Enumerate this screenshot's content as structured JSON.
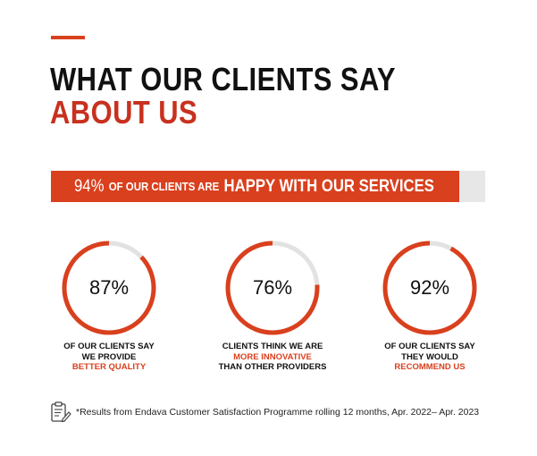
{
  "header": {
    "title_line1": "WHAT OUR CLIENTS SAY",
    "title_line2": "ABOUT US"
  },
  "banner": {
    "percent_label": "94%",
    "mid_text": "OF OUR CLIENTS ARE",
    "highlight_text": "HAPPY WITH OUR SERVICES",
    "fill_fraction": 0.94
  },
  "stats": [
    {
      "value_label": "87%",
      "fraction": 0.87,
      "line1": "OF OUR CLIENTS SAY",
      "line2": "WE PROVIDE",
      "highlight": "BETTER QUALITY",
      "line4": ""
    },
    {
      "value_label": "76%",
      "fraction": 0.76,
      "line1": "CLIENTS THINK WE ARE",
      "line2": "",
      "highlight": "MORE INNOVATIVE",
      "line4": "THAN OTHER PROVIDERS"
    },
    {
      "value_label": "92%",
      "fraction": 0.92,
      "line1": "OF OUR CLIENTS SAY",
      "line2": "THEY WOULD",
      "highlight": "RECOMMEND US",
      "line4": ""
    }
  ],
  "footnote": {
    "icon": "clipboard-pencil-icon",
    "text": "*Results from Endava Customer Satisfaction Programme rolling 12 months, Apr. 2022– Apr. 2023"
  },
  "colors": {
    "accent": "#d9401e",
    "title_accent": "#c8311f",
    "track": "#e2e2e2",
    "bar_track": "#e7e7e7"
  }
}
